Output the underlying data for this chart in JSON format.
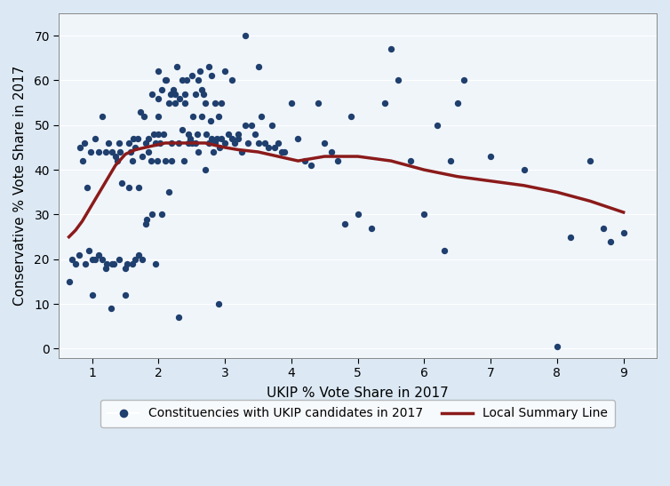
{
  "title": "",
  "xlabel": "UKIP % Vote Share in 2017",
  "ylabel": "Conservative % Vote Share in 2017",
  "xlim": [
    0.5,
    9.5
  ],
  "ylim": [
    -2,
    75
  ],
  "xticks": [
    1,
    2,
    3,
    4,
    5,
    6,
    7,
    8,
    9
  ],
  "yticks": [
    0,
    10,
    20,
    30,
    40,
    50,
    60,
    70
  ],
  "background_color": "#dce9f5",
  "plot_bg_color": "#f0f5fa",
  "dot_color": "#1f3f6e",
  "line_color": "#8b1a1a",
  "legend_label_dots": "Constituencies with UKIP candidates in 2017",
  "legend_label_line": "Local Summary Line",
  "scatter_x": [
    0.65,
    0.7,
    0.75,
    0.8,
    0.82,
    0.85,
    0.88,
    0.9,
    0.92,
    0.95,
    0.97,
    1.0,
    1.0,
    1.05,
    1.05,
    1.1,
    1.1,
    1.15,
    1.15,
    1.2,
    1.2,
    1.22,
    1.25,
    1.28,
    1.3,
    1.3,
    1.32,
    1.35,
    1.38,
    1.4,
    1.4,
    1.42,
    1.45,
    1.5,
    1.5,
    1.52,
    1.55,
    1.55,
    1.58,
    1.6,
    1.6,
    1.62,
    1.65,
    1.65,
    1.68,
    1.7,
    1.7,
    1.72,
    1.75,
    1.75,
    1.78,
    1.8,
    1.8,
    1.82,
    1.85,
    1.85,
    1.88,
    1.9,
    1.9,
    1.92,
    1.95,
    1.95,
    1.98,
    2.0,
    2.0,
    2.0,
    2.0,
    2.02,
    2.05,
    2.05,
    2.08,
    2.1,
    2.1,
    2.12,
    2.15,
    2.15,
    2.18,
    2.2,
    2.2,
    2.22,
    2.25,
    2.25,
    2.28,
    2.3,
    2.3,
    2.32,
    2.35,
    2.35,
    2.38,
    2.4,
    2.4,
    2.42,
    2.45,
    2.45,
    2.48,
    2.5,
    2.5,
    2.52,
    2.55,
    2.55,
    2.58,
    2.6,
    2.6,
    2.62,
    2.65,
    2.65,
    2.68,
    2.7,
    2.7,
    2.72,
    2.75,
    2.75,
    2.78,
    2.8,
    2.8,
    2.82,
    2.85,
    2.85,
    2.88,
    2.9,
    2.9,
    2.92,
    2.95,
    2.95,
    3.0,
    3.0,
    3.05,
    3.1,
    3.1,
    3.15,
    3.2,
    3.2,
    3.25,
    3.3,
    3.3,
    3.35,
    3.4,
    3.45,
    3.5,
    3.5,
    3.55,
    3.6,
    3.65,
    3.7,
    3.75,
    3.8,
    3.85,
    3.9,
    4.0,
    4.1,
    4.2,
    4.3,
    4.4,
    4.5,
    4.6,
    4.7,
    4.8,
    4.9,
    5.0,
    5.2,
    5.4,
    5.5,
    5.6,
    5.8,
    6.0,
    6.2,
    6.3,
    6.4,
    6.5,
    6.6,
    7.0,
    7.5,
    8.0,
    8.2,
    8.5,
    8.7,
    8.8,
    9.0
  ],
  "scatter_y": [
    15.0,
    20.0,
    19.0,
    21.0,
    45.0,
    42.0,
    46.0,
    19.0,
    36.0,
    22.0,
    44.0,
    12.0,
    20.0,
    47.0,
    20.0,
    21.0,
    44.0,
    52.0,
    20.0,
    18.0,
    44.0,
    19.0,
    46.0,
    9.0,
    44.0,
    19.0,
    19.0,
    43.0,
    42.0,
    20.0,
    46.0,
    44.0,
    37.0,
    12.0,
    18.0,
    19.0,
    36.0,
    46.0,
    44.0,
    19.0,
    42.0,
    47.0,
    20.0,
    45.0,
    47.0,
    21.0,
    36.0,
    53.0,
    20.0,
    43.0,
    52.0,
    46.0,
    28.0,
    29.0,
    44.0,
    47.0,
    42.0,
    57.0,
    30.0,
    48.0,
    46.0,
    19.0,
    42.0,
    52.0,
    48.0,
    56.0,
    62.0,
    46.0,
    58.0,
    30.0,
    48.0,
    60.0,
    42.0,
    60.0,
    55.0,
    35.0,
    57.0,
    46.0,
    42.0,
    58.0,
    55.0,
    57.0,
    63.0,
    7.0,
    46.0,
    56.0,
    49.0,
    60.0,
    42.0,
    57.0,
    55.0,
    60.0,
    48.0,
    46.0,
    47.0,
    46.0,
    61.0,
    52.0,
    57.0,
    46.0,
    48.0,
    44.0,
    60.0,
    62.0,
    52.0,
    58.0,
    57.0,
    55.0,
    40.0,
    48.0,
    63.0,
    46.0,
    51.0,
    47.0,
    61.0,
    44.0,
    46.0,
    55.0,
    47.0,
    52.0,
    10.0,
    45.0,
    47.0,
    55.0,
    62.0,
    46.0,
    48.0,
    60.0,
    47.0,
    46.0,
    48.0,
    47.0,
    44.0,
    50.0,
    70.0,
    46.0,
    50.0,
    48.0,
    63.0,
    46.0,
    52.0,
    46.0,
    45.0,
    50.0,
    45.0,
    46.0,
    44.0,
    44.0,
    55.0,
    47.0,
    42.0,
    41.0,
    55.0,
    46.0,
    44.0,
    42.0,
    28.0,
    52.0,
    30.0,
    27.0,
    55.0,
    67.0,
    60.0,
    42.0,
    30.0,
    50.0,
    22.0,
    42.0,
    55.0,
    60.0,
    43.0,
    40.0,
    0.5,
    25.0,
    42.0,
    27.0,
    24.0,
    26.0
  ],
  "lowess_x": [
    0.65,
    0.75,
    0.85,
    0.95,
    1.05,
    1.15,
    1.25,
    1.35,
    1.5,
    1.65,
    1.8,
    1.95,
    2.1,
    2.25,
    2.4,
    2.55,
    2.7,
    2.85,
    3.0,
    3.2,
    3.5,
    3.8,
    4.1,
    4.5,
    5.0,
    5.5,
    6.0,
    6.5,
    7.0,
    7.5,
    8.0,
    8.5,
    9.0
  ],
  "lowess_y": [
    25.0,
    26.5,
    28.5,
    31.0,
    33.5,
    36.0,
    38.5,
    41.0,
    43.5,
    44.5,
    45.0,
    45.5,
    46.0,
    46.0,
    46.0,
    46.0,
    46.0,
    45.5,
    45.0,
    44.5,
    44.0,
    43.0,
    42.0,
    43.0,
    43.0,
    42.0,
    40.0,
    38.5,
    37.5,
    36.5,
    35.0,
    33.0,
    30.5
  ]
}
